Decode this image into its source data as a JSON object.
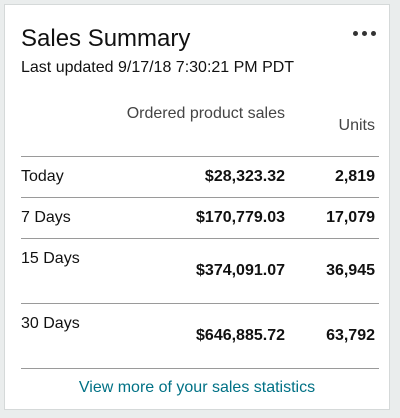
{
  "widget": {
    "title": "Sales Summary",
    "last_updated": "Last updated 9/17/18 7:30:21 PM PDT",
    "more_menu_icon": "ellipsis-icon"
  },
  "table": {
    "headers": {
      "sales": "Ordered product sales",
      "units": "Units"
    },
    "rows": [
      {
        "period": "Today",
        "sales": "$28,323.32",
        "units": "2,819"
      },
      {
        "period": "7 Days",
        "sales": "$170,779.03",
        "units": "17,079"
      },
      {
        "period": "15 Days",
        "sales": "$374,091.07",
        "units": "36,945"
      },
      {
        "period": "30 Days",
        "sales": "$646,885.72",
        "units": "63,792"
      }
    ]
  },
  "footer": {
    "link_label": "View more of your sales statistics"
  },
  "colors": {
    "link": "#007185",
    "text": "#111111",
    "divider": "#9a9a9a"
  }
}
